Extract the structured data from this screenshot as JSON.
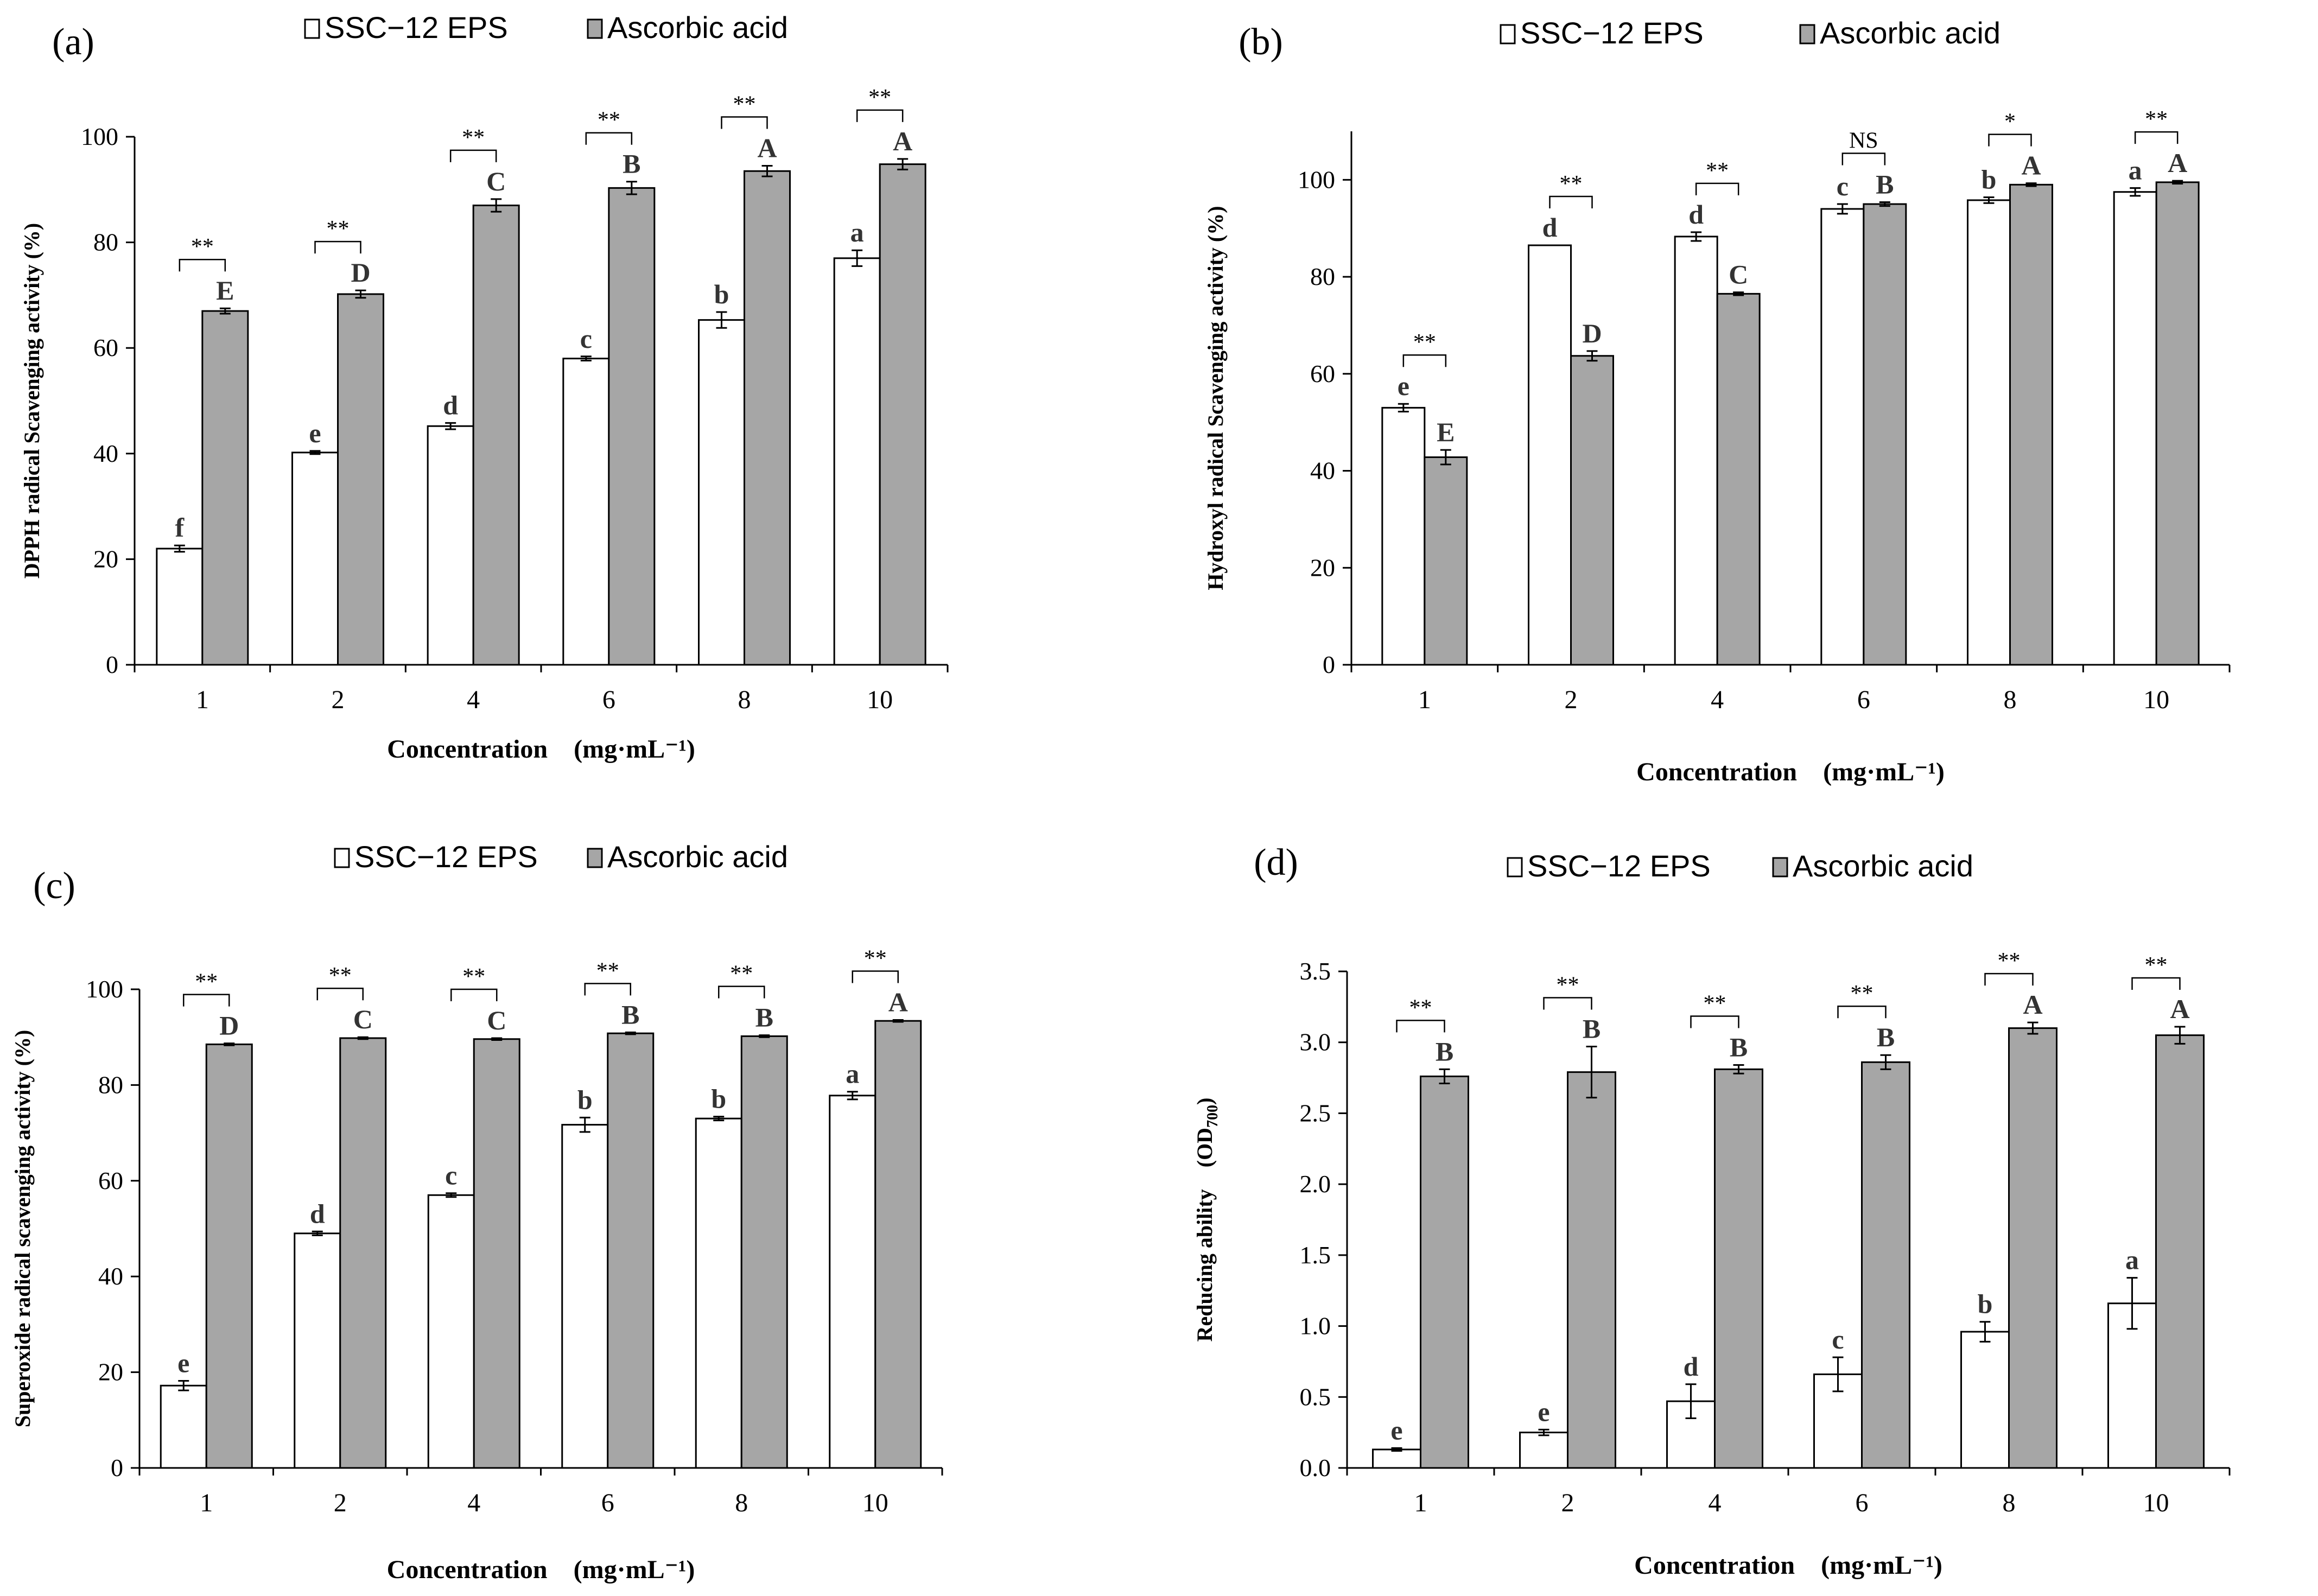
{
  "figure": {
    "colors": {
      "eps": "#ffffff",
      "ascorbic": "#a6a6a6",
      "stroke": "#000000",
      "letter": "#333333"
    }
  },
  "chart_data": [
    {
      "panel_label": "(a)",
      "type": "bar",
      "title": "",
      "categories": [
        "1",
        "2",
        "4",
        "6",
        "8",
        "10"
      ],
      "xlabel": "Concentration　(mg·mL⁻¹)",
      "ylabel": "DPPH radical Scavenging activity (%)",
      "ylim": [
        0,
        100
      ],
      "yticks": [
        0,
        20,
        40,
        60,
        80,
        100
      ],
      "ytick_labels": [
        "0",
        "20",
        "40",
        "60",
        "80",
        "100"
      ],
      "grid": false,
      "legend_position": "top-center",
      "series": [
        {
          "name": "SSC−12 EPS",
          "values": [
            22.0,
            40.2,
            45.2,
            58.0,
            65.3,
            77.0
          ],
          "errors": [
            0.6,
            0.3,
            0.6,
            0.4,
            1.5,
            1.5
          ],
          "letters": [
            "f",
            "e",
            "d",
            "c",
            "b",
            "a"
          ]
        },
        {
          "name": "Ascorbic acid",
          "values": [
            67.0,
            70.2,
            87.0,
            90.3,
            93.5,
            94.8
          ],
          "errors": [
            0.5,
            0.7,
            1.2,
            1.2,
            1.0,
            1.0
          ],
          "letters": [
            "E",
            "D",
            "C",
            "B",
            "A",
            "A"
          ]
        }
      ],
      "significance": [
        "**",
        "**",
        "**",
        "**",
        "**",
        "**"
      ]
    },
    {
      "panel_label": "(b)",
      "type": "bar",
      "title": "",
      "categories": [
        "1",
        "2",
        "4",
        "6",
        "8",
        "10"
      ],
      "xlabel": "Concentration　(mg·mL⁻¹)",
      "ylabel": "Hydroxyl radical Scavenging activity (%)",
      "ylim": [
        0,
        110
      ],
      "yticks": [
        0,
        20,
        40,
        60,
        80,
        100
      ],
      "ytick_labels": [
        "0",
        "20",
        "40",
        "60",
        "80",
        "100"
      ],
      "grid": false,
      "legend_position": "top-center",
      "series": [
        {
          "name": "SSC−12 EPS",
          "values": [
            53.0,
            86.5,
            88.3,
            94.0,
            95.8,
            97.5
          ],
          "errors": [
            0.8,
            0.0,
            0.9,
            1.0,
            0.6,
            0.8
          ],
          "letters": [
            "e",
            "d",
            "d",
            "c",
            "b",
            "a"
          ]
        },
        {
          "name": "Ascorbic acid",
          "values": [
            42.8,
            63.7,
            76.5,
            95.0,
            99.0,
            99.5
          ],
          "errors": [
            1.5,
            1.0,
            0.3,
            0.4,
            0.3,
            0.3
          ],
          "letters": [
            "E",
            "D",
            "C",
            "B",
            "A",
            "A"
          ]
        }
      ],
      "significance": [
        "**",
        "**",
        "**",
        "NS",
        "*",
        "**"
      ]
    },
    {
      "panel_label": "(c)",
      "type": "bar",
      "title": "",
      "categories": [
        "1",
        "2",
        "4",
        "6",
        "8",
        "10"
      ],
      "xlabel": "Concentration　(mg·mL⁻¹)",
      "ylabel": "Superoxide radical scavenging activity (%)",
      "ylim": [
        0,
        100
      ],
      "yticks": [
        0,
        20,
        40,
        60,
        80,
        100
      ],
      "ytick_labels": [
        "0",
        "20",
        "40",
        "60",
        "80",
        "100"
      ],
      "grid": false,
      "legend_position": "top-center",
      "series": [
        {
          "name": "SSC−12 EPS",
          "values": [
            17.2,
            49.0,
            57.0,
            71.7,
            73.0,
            77.8
          ],
          "errors": [
            1.0,
            0.4,
            0.4,
            1.5,
            0.4,
            0.8
          ],
          "letters": [
            "e",
            "d",
            "c",
            "b",
            "b",
            "a"
          ]
        },
        {
          "name": "Ascorbic acid",
          "values": [
            88.5,
            89.8,
            89.6,
            90.8,
            90.2,
            93.4
          ],
          "errors": [
            0.2,
            0.2,
            0.2,
            0.2,
            0.2,
            0.2
          ],
          "letters": [
            "D",
            "C",
            "C",
            "B",
            "B",
            "A"
          ]
        }
      ],
      "significance": [
        "**",
        "**",
        "**",
        "**",
        "**",
        "**"
      ]
    },
    {
      "panel_label": "(d)",
      "type": "bar",
      "title": "",
      "categories": [
        "1",
        "2",
        "4",
        "6",
        "8",
        "10"
      ],
      "xlabel": "Concentration　(mg·mL⁻¹)",
      "ylabel": "Reducing ability　(OD",
      "ylabel_sub": "700",
      "ylabel_end": ")",
      "ylim": [
        0,
        3.5
      ],
      "yticks": [
        0,
        0.5,
        1.0,
        1.5,
        2.0,
        2.5,
        3.0,
        3.5
      ],
      "ytick_labels": [
        "0.0",
        "0.5",
        "1.0",
        "1.5",
        "2.0",
        "2.5",
        "3.0",
        "3.5"
      ],
      "grid": false,
      "legend_position": "top-center",
      "series": [
        {
          "name": "SSC−12 EPS",
          "values": [
            0.13,
            0.25,
            0.47,
            0.66,
            0.96,
            1.16
          ],
          "errors": [
            0.01,
            0.02,
            0.12,
            0.12,
            0.07,
            0.18
          ],
          "letters": [
            "e",
            "e",
            "d",
            "c",
            "b",
            "a"
          ]
        },
        {
          "name": "Ascorbic acid",
          "values": [
            2.76,
            2.79,
            2.81,
            2.86,
            3.1,
            3.05
          ],
          "errors": [
            0.05,
            0.18,
            0.03,
            0.05,
            0.04,
            0.06
          ],
          "letters": [
            "B",
            "B",
            "B",
            "B",
            "A",
            "A"
          ]
        }
      ],
      "significance": [
        "**",
        "**",
        "**",
        "**",
        "**",
        "**"
      ]
    }
  ]
}
